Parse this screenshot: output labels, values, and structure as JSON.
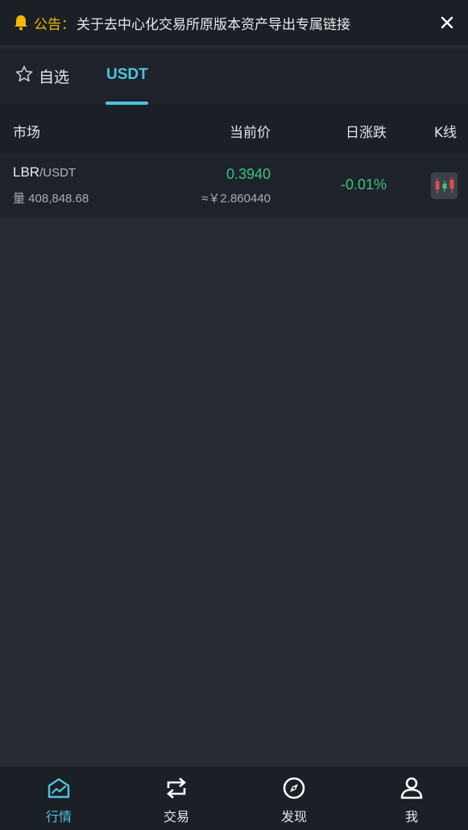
{
  "notice": {
    "prefix": "公告：",
    "text": "关于去中心化交易所原版本资产导出专属链接",
    "icon": "bell-icon"
  },
  "tabs": [
    {
      "label": "自选",
      "icon": "star-outline-icon",
      "active": false
    },
    {
      "label": "USDT",
      "active": true
    }
  ],
  "columns": {
    "market": "市场",
    "price": "当前价",
    "change": "日涨跌",
    "kline": "K线"
  },
  "rows": [
    {
      "base": "LBR",
      "quote": "/USDT",
      "volume": "量 408,848.68",
      "price": "0.3940",
      "cny": "≈￥2.860440",
      "change": "-0.01%",
      "kline_icon": "candlestick-chart-icon"
    }
  ],
  "nav": [
    {
      "label": "行情",
      "icon": "market-chart-icon",
      "active": true
    },
    {
      "label": "交易",
      "icon": "swap-icon",
      "active": false
    },
    {
      "label": "发现",
      "icon": "compass-icon",
      "active": false
    },
    {
      "label": "我",
      "icon": "user-icon",
      "active": false
    }
  ],
  "colors": {
    "accent": "#4fc3e0",
    "up": "#3cc47c",
    "warning": "#f0b90b",
    "background": "#252a33"
  }
}
